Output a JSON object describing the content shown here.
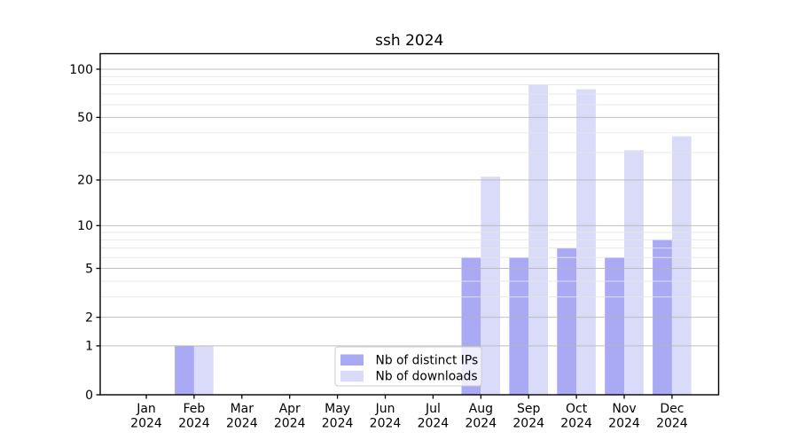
{
  "chart_data": {
    "type": "bar",
    "title": "ssh 2024",
    "yscale": "log1p",
    "ylim": [
      0,
      125
    ],
    "grid": "horizontal major and minor, drawn above bars",
    "legend_position": "lower center",
    "categories": [
      {
        "line1": "Jan",
        "line2": "2024"
      },
      {
        "line1": "Feb",
        "line2": "2024"
      },
      {
        "line1": "Mar",
        "line2": "2024"
      },
      {
        "line1": "Apr",
        "line2": "2024"
      },
      {
        "line1": "May",
        "line2": "2024"
      },
      {
        "line1": "Jun",
        "line2": "2024"
      },
      {
        "line1": "Jul",
        "line2": "2024"
      },
      {
        "line1": "Aug",
        "line2": "2024"
      },
      {
        "line1": "Sep",
        "line2": "2024"
      },
      {
        "line1": "Oct",
        "line2": "2024"
      },
      {
        "line1": "Nov",
        "line2": "2024"
      },
      {
        "line1": "Dec",
        "line2": "2024"
      }
    ],
    "series": [
      {
        "name": "Nb of distinct IPs",
        "color": "#a9a9f4",
        "values": [
          0,
          1,
          0,
          0,
          0,
          0,
          0,
          6,
          6,
          7,
          6,
          8
        ]
      },
      {
        "name": "Nb of downloads",
        "color": "#dadaf9",
        "values": [
          0,
          1,
          0,
          0,
          0,
          0,
          0,
          21,
          80,
          75,
          31,
          38
        ]
      }
    ],
    "yticks": [
      {
        "value": 0,
        "label": "0"
      },
      {
        "value": 1,
        "label": "1"
      },
      {
        "value": 2,
        "label": "2"
      },
      {
        "value": 5,
        "label": "5"
      },
      {
        "value": 10,
        "label": "10"
      },
      {
        "value": 20,
        "label": "20"
      },
      {
        "value": 50,
        "label": "50"
      },
      {
        "value": 100,
        "label": "100"
      }
    ],
    "minor_gridlines": [
      3,
      4,
      6,
      7,
      8,
      9,
      30,
      40,
      60,
      70,
      80,
      90
    ],
    "colors": {
      "major_grid": "#b6b6b6",
      "minor_grid": "#e6e6e6",
      "axis": "#000000",
      "legend_border": "#cccccc",
      "legend_bg": "rgba(255,255,255,0.8)",
      "background": "#ffffff",
      "text": "#000000"
    }
  }
}
